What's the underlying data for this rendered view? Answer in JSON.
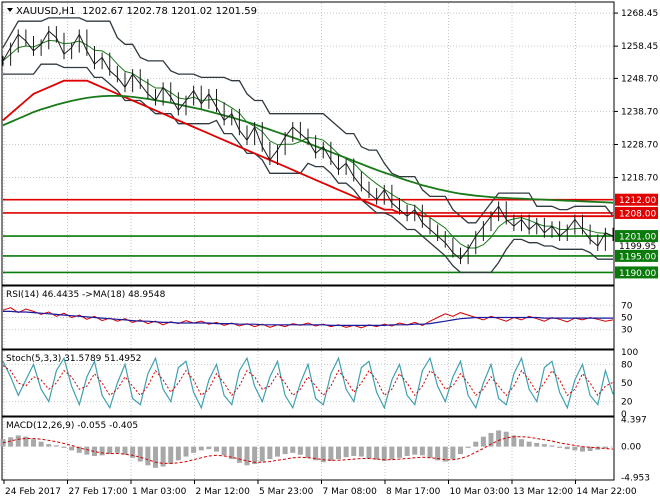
{
  "header": {
    "symbol": "XAUUSD,H1",
    "ohlc": "1202.67 1202.78 1201.02 1201.59"
  },
  "colors": {
    "frame": "#000000",
    "grid": "#c8c8c8",
    "price_line": "#1a1a1a",
    "bollinger": "#303a40",
    "ma_red": "#e00000",
    "ma_green": "#1a7a1a",
    "level_red": "#e00000",
    "level_green": "#0a7a0a",
    "rsi_red": "#d40000",
    "rsi_blue": "#1a1aa0",
    "stoch_main": "#40a0b0",
    "stoch_signal": "#d40000",
    "macd_hist": "#a8a8a8",
    "macd_signal": "#d40000",
    "label_red_bg": "#e00000",
    "label_green_bg": "#0a7a0a"
  },
  "chart_data": [
    {
      "type": "line",
      "panel": "price",
      "title": "XAUUSD,H1",
      "ylim": [
        1186.5,
        1271.5
      ],
      "y_ticks": [
        "1268.45",
        "1258.45",
        "1248.70",
        "1238.70",
        "1228.70",
        "1218.70"
      ],
      "levels": [
        {
          "value": 1212.0,
          "label": "1212.00",
          "color": "red"
        },
        {
          "value": 1208.0,
          "label": "1208.00",
          "color": "red"
        },
        {
          "value": 1201.0,
          "label": "1201.00",
          "color": "green"
        },
        {
          "value": 1195.0,
          "label": "1195.00",
          "color": "green"
        },
        {
          "value": 1190.0,
          "label": "1190.00",
          "color": "green"
        }
      ],
      "current_price_label": "1199.95",
      "series": [
        {
          "values": [
            1254,
            1258,
            1262,
            1260,
            1257,
            1259,
            1263,
            1261,
            1256,
            1258,
            1262,
            1257,
            1253,
            1255,
            1251,
            1249,
            1246,
            1250,
            1247,
            1244,
            1242,
            1246,
            1243,
            1239,
            1242,
            1245,
            1241,
            1244,
            1240,
            1236,
            1238,
            1233,
            1230,
            1234,
            1228,
            1224,
            1227,
            1231,
            1234,
            1232,
            1230,
            1226,
            1228,
            1224,
            1221,
            1223,
            1219,
            1216,
            1214,
            1212,
            1215,
            1211,
            1209,
            1207,
            1209,
            1205,
            1203,
            1201,
            1199,
            1196,
            1194,
            1197,
            1201,
            1204,
            1207,
            1210,
            1206,
            1204,
            1206,
            1203,
            1205,
            1202,
            1204,
            1201,
            1203,
            1206,
            1203,
            1200,
            1198,
            1202,
            1201
          ]
        },
        {
          "values": [
            1236,
            1238,
            1240,
            1242,
            1244,
            1245,
            1246,
            1247,
            1248,
            1248,
            1248,
            1248,
            1247,
            1246,
            1245,
            1244,
            1243,
            1242,
            1241,
            1240,
            1239,
            1238,
            1237,
            1236,
            1235,
            1234,
            1233,
            1232,
            1231,
            1230,
            1229,
            1228,
            1227,
            1226,
            1225,
            1224,
            1223,
            1222,
            1221,
            1220,
            1219,
            1218,
            1217,
            1216,
            1215,
            1214,
            1213,
            1212,
            1211,
            1210,
            1209,
            1209,
            1208,
            1208,
            1208,
            1207,
            1207,
            1207,
            1207,
            1207,
            1207,
            1207,
            1207,
            1207,
            1207,
            1207,
            1207,
            1207,
            1207,
            1207,
            1207,
            1207,
            1207,
            1207,
            1207,
            1207,
            1207,
            1207,
            1207,
            1207,
            1207
          ]
        },
        {
          "values": [
            1234.5,
            1235.5,
            1236.5,
            1237.5,
            1238.5,
            1239.3,
            1240.0,
            1240.7,
            1241.3,
            1241.9,
            1242.4,
            1242.8,
            1243.1,
            1243.3,
            1243.4,
            1243.4,
            1243.3,
            1243.1,
            1242.8,
            1242.5,
            1242.1,
            1241.7,
            1241.3,
            1240.8,
            1240.3,
            1239.8,
            1239.3,
            1238.7,
            1238.1,
            1237.5,
            1236.9,
            1236.2,
            1235.5,
            1234.8,
            1234.0,
            1233.2,
            1232.4,
            1231.6,
            1230.8,
            1230.0,
            1229.1,
            1228.2,
            1227.3,
            1226.4,
            1225.5,
            1224.6,
            1223.7,
            1222.8,
            1221.9,
            1221.0,
            1220.2,
            1219.4,
            1218.6,
            1217.8,
            1217.1,
            1216.4,
            1215.8,
            1215.2,
            1214.7,
            1214.2,
            1213.8,
            1213.5,
            1213.2,
            1213.0,
            1212.8,
            1212.6,
            1212.5,
            1212.4,
            1212.3,
            1212.2,
            1212.1,
            1212.0,
            1211.9,
            1211.8,
            1211.7,
            1211.6,
            1211.5,
            1211.4,
            1211.3,
            1211.2,
            1211.1
          ]
        }
      ]
    },
    {
      "type": "line",
      "panel": "rsi",
      "title": "RSI(14) 46.4435 ->MA(18) 48.9548",
      "ylim": [
        0,
        100
      ],
      "y_ticks": [
        "70",
        "50",
        "30"
      ],
      "series": [
        {
          "values": [
            62,
            66,
            58,
            64,
            60,
            55,
            59,
            52,
            57,
            50,
            54,
            47,
            52,
            45,
            49,
            44,
            48,
            42,
            46,
            40,
            44,
            38,
            43,
            40,
            45,
            41,
            44,
            39,
            42,
            37,
            41,
            36,
            40,
            35,
            39,
            34,
            38,
            35,
            40,
            37,
            41,
            36,
            39,
            35,
            38,
            34,
            37,
            33,
            38,
            35,
            39,
            36,
            41,
            38,
            42,
            37,
            44,
            50,
            56,
            52,
            58,
            54,
            50,
            46,
            52,
            48,
            44,
            50,
            46,
            52,
            48,
            44,
            50,
            47,
            43,
            49,
            46,
            50,
            47,
            44,
            46
          ]
        },
        {
          "values": [
            60,
            60,
            59,
            59,
            58,
            57,
            56,
            55,
            54,
            53,
            52,
            51,
            50,
            49,
            48,
            47,
            46,
            45,
            44,
            44,
            43,
            42,
            42,
            41,
            41,
            41,
            41,
            41,
            40,
            40,
            40,
            39,
            39,
            39,
            38,
            38,
            38,
            38,
            38,
            38,
            38,
            38,
            38,
            37,
            37,
            37,
            37,
            37,
            37,
            37,
            37,
            38,
            38,
            38,
            39,
            39,
            40,
            42,
            44,
            46,
            48,
            49,
            50,
            50,
            50,
            50,
            50,
            50,
            50,
            50,
            50,
            49,
            49,
            49,
            49,
            49,
            49,
            49,
            49,
            49,
            49
          ]
        }
      ]
    },
    {
      "type": "line",
      "panel": "stochastic",
      "title": "Stoch(5,3,3) 31.5789 51.4952",
      "ylim": [
        0,
        100
      ],
      "y_ticks": [
        "100",
        "80",
        "50",
        "20",
        "0"
      ],
      "series": [
        {
          "values": [
            85,
            60,
            30,
            55,
            80,
            40,
            20,
            70,
            90,
            45,
            15,
            60,
            85,
            30,
            10,
            50,
            80,
            25,
            15,
            65,
            90,
            40,
            20,
            75,
            85,
            35,
            10,
            55,
            80,
            30,
            15,
            70,
            90,
            45,
            20,
            60,
            85,
            30,
            10,
            50,
            80,
            25,
            15,
            65,
            90,
            40,
            20,
            75,
            85,
            35,
            10,
            55,
            80,
            30,
            15,
            70,
            90,
            45,
            20,
            60,
            85,
            30,
            10,
            50,
            80,
            25,
            15,
            65,
            90,
            40,
            20,
            75,
            85,
            35,
            10,
            55,
            80,
            30,
            15,
            70,
            32
          ]
        },
        {
          "values": [
            78,
            70,
            50,
            45,
            60,
            55,
            40,
            50,
            70,
            60,
            40,
            45,
            65,
            50,
            30,
            40,
            60,
            45,
            30,
            45,
            70,
            55,
            35,
            50,
            70,
            55,
            30,
            40,
            65,
            50,
            30,
            45,
            70,
            60,
            40,
            45,
            65,
            50,
            30,
            40,
            60,
            45,
            30,
            45,
            70,
            55,
            35,
            50,
            70,
            55,
            30,
            40,
            65,
            50,
            30,
            45,
            70,
            60,
            40,
            45,
            65,
            50,
            30,
            40,
            60,
            45,
            30,
            45,
            70,
            55,
            35,
            50,
            70,
            55,
            30,
            40,
            65,
            50,
            30,
            45,
            51
          ]
        }
      ]
    },
    {
      "type": "bar",
      "panel": "macd",
      "title": "MACD(12,26,9) -0.055 -0.405",
      "ylim": [
        -5.2,
        4.6
      ],
      "y_ticks": [
        "4.397",
        "0.00",
        "-4.953"
      ],
      "series": [
        {
          "values": [
            1.2,
            1.5,
            1.8,
            1.6,
            1.2,
            0.8,
            0.4,
            0.2,
            -0.2,
            -0.6,
            -1.0,
            -1.3,
            -1.5,
            -1.4,
            -1.2,
            -1.0,
            -1.3,
            -1.8,
            -2.4,
            -3.0,
            -3.4,
            -3.2,
            -2.8,
            -2.2,
            -1.6,
            -1.0,
            -0.6,
            -0.4,
            -0.8,
            -1.4,
            -2.0,
            -2.6,
            -3.0,
            -2.8,
            -2.4,
            -2.0,
            -1.6,
            -1.2,
            -1.0,
            -1.3,
            -1.8,
            -2.2,
            -2.5,
            -2.3,
            -2.0,
            -1.7,
            -1.5,
            -1.6,
            -1.9,
            -2.1,
            -2.3,
            -2.1,
            -1.8,
            -1.5,
            -1.3,
            -1.4,
            -1.8,
            -2.2,
            -2.4,
            -2.0,
            -1.2,
            -0.2,
            0.8,
            1.6,
            2.2,
            2.6,
            2.4,
            1.8,
            1.2,
            0.8,
            0.6,
            0.4,
            0.2,
            -0.2,
            -0.4,
            -0.6,
            -0.8,
            -0.7,
            -0.5,
            -0.3,
            -0.1
          ]
        },
        {
          "values": [
            0.6,
            0.9,
            1.2,
            1.3,
            1.3,
            1.2,
            1.0,
            0.8,
            0.5,
            0.2,
            -0.2,
            -0.5,
            -0.8,
            -1.0,
            -1.1,
            -1.1,
            -1.2,
            -1.4,
            -1.7,
            -2.1,
            -2.5,
            -2.7,
            -2.7,
            -2.6,
            -2.4,
            -2.1,
            -1.8,
            -1.5,
            -1.4,
            -1.5,
            -1.7,
            -2.0,
            -2.3,
            -2.5,
            -2.5,
            -2.4,
            -2.2,
            -2.0,
            -1.8,
            -1.7,
            -1.8,
            -1.9,
            -2.1,
            -2.2,
            -2.2,
            -2.1,
            -2.0,
            -1.9,
            -1.9,
            -2.0,
            -2.1,
            -2.1,
            -2.0,
            -1.9,
            -1.8,
            -1.7,
            -1.8,
            -1.9,
            -2.1,
            -2.1,
            -1.9,
            -1.5,
            -0.9,
            -0.3,
            0.4,
            1.0,
            1.4,
            1.6,
            1.6,
            1.5,
            1.3,
            1.1,
            0.9,
            0.6,
            0.4,
            0.2,
            0.0,
            -0.1,
            -0.2,
            -0.3,
            -0.4
          ]
        }
      ]
    }
  ],
  "x_axis": {
    "labels": [
      "24 Feb 2017",
      "27 Feb 17:00",
      "1 Mar 03:00",
      "2 Mar 12:00",
      "5 Mar 23:00",
      "7 Mar 08:00",
      "8 Mar 17:00",
      "10 Mar 03:00",
      "13 Mar 12:00",
      "14 Mar 22:00"
    ]
  }
}
